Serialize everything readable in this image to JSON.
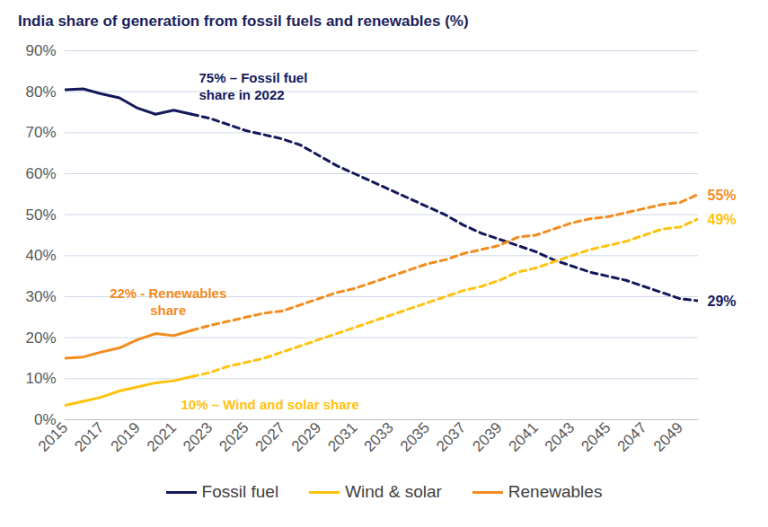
{
  "chart_data": {
    "type": "line",
    "title": "India share of generation from fossil fuels and renewables (%)",
    "x": [
      2015,
      2016,
      2017,
      2018,
      2019,
      2020,
      2021,
      2022,
      2023,
      2024,
      2025,
      2026,
      2027,
      2028,
      2029,
      2030,
      2031,
      2032,
      2033,
      2034,
      2035,
      2036,
      2037,
      2038,
      2039,
      2040,
      2041,
      2042,
      2043,
      2044,
      2045,
      2046,
      2047,
      2048,
      2049,
      2050
    ],
    "projection_from": 2022,
    "series": [
      {
        "name": "Fossil fuel",
        "color": "#14195a",
        "values": [
          80.5,
          80.7,
          79.5,
          78.5,
          76,
          74.5,
          75.5,
          74.5,
          73.5,
          72,
          70.5,
          69.5,
          68.5,
          67,
          64.5,
          62,
          60,
          58,
          56,
          54,
          52,
          50,
          47.5,
          45.5,
          44,
          42.5,
          41,
          39,
          37.5,
          36,
          35,
          34,
          32.5,
          31,
          29.5,
          29
        ]
      },
      {
        "name": "Wind & solar",
        "color": "#ffc20e",
        "values": [
          3.5,
          4.5,
          5.5,
          7,
          8,
          9,
          9.5,
          10.5,
          11.5,
          13,
          14,
          15,
          16.5,
          18,
          19.5,
          21,
          22.5,
          24,
          25.5,
          27,
          28.5,
          30,
          31.5,
          32.5,
          34,
          36,
          37,
          38.5,
          40,
          41.5,
          42.5,
          43.5,
          45,
          46.5,
          47,
          49
        ]
      },
      {
        "name": "Renewables",
        "color": "#f28c1e",
        "values": [
          15,
          15.3,
          16.5,
          17.5,
          19.5,
          21,
          20.5,
          21.8,
          23,
          24,
          25,
          26,
          26.5,
          28,
          29.5,
          31,
          32,
          33.5,
          35,
          36.5,
          38,
          39,
          40.5,
          41.5,
          42.5,
          44.5,
          45,
          46.5,
          48,
          49,
          49.5,
          50.5,
          51.5,
          52.5,
          53,
          55
        ]
      }
    ],
    "annotations": [
      {
        "text": "75% – Fossil fuel\nshare in 2022",
        "series": "Fossil fuel",
        "x": 2022
      },
      {
        "text": "22% - Renewables\nshare",
        "series": "Renewables",
        "x": 2020
      },
      {
        "text": "10% – Wind and solar share",
        "series": "Wind & solar",
        "x": 2022
      },
      {
        "text": "55%",
        "series": "Renewables",
        "x": 2050
      },
      {
        "text": "49%",
        "series": "Wind & solar",
        "x": 2050
      },
      {
        "text": "29%",
        "series": "Fossil fuel",
        "x": 2050
      }
    ],
    "xlim": [
      2015,
      2050
    ],
    "xticks": [
      2015,
      2017,
      2019,
      2021,
      2023,
      2025,
      2027,
      2029,
      2031,
      2033,
      2035,
      2037,
      2039,
      2041,
      2043,
      2045,
      2047,
      2049
    ],
    "ylim": [
      0,
      90
    ],
    "yticks": [
      {
        "value": 0,
        "label": "0%"
      },
      {
        "value": 10,
        "label": "10%"
      },
      {
        "value": 20,
        "label": "20%"
      },
      {
        "value": 30,
        "label": "30%"
      },
      {
        "value": 40,
        "label": "40%"
      },
      {
        "value": 50,
        "label": "50%"
      },
      {
        "value": 60,
        "label": "60%"
      },
      {
        "value": 70,
        "label": "70%"
      },
      {
        "value": 80,
        "label": "80%"
      },
      {
        "value": 90,
        "label": "90%"
      }
    ],
    "grid": true,
    "legend": "bottom"
  }
}
